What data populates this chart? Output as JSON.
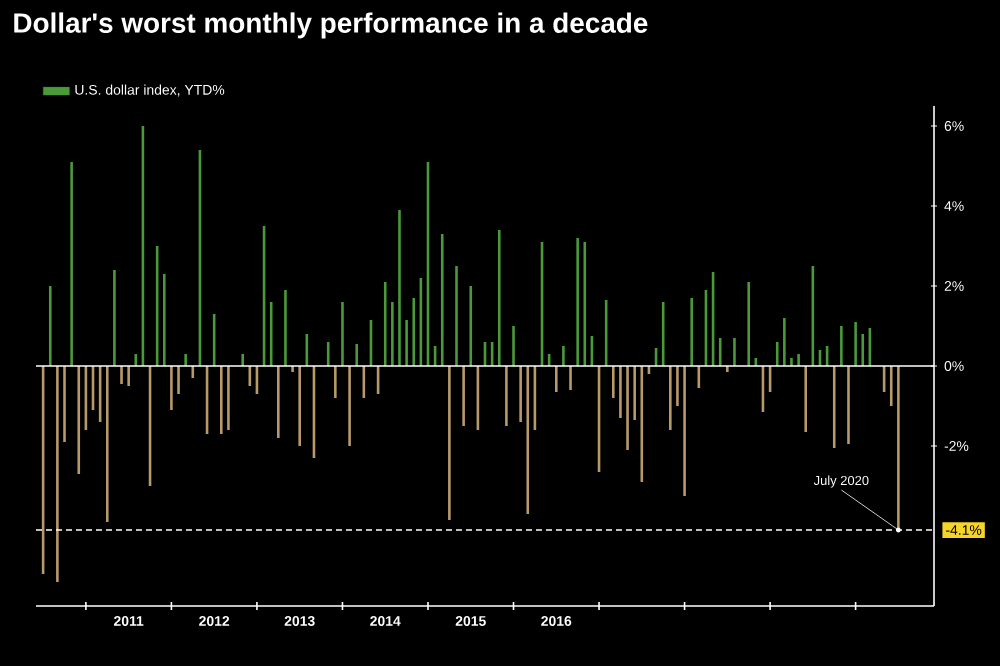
{
  "chart_data": {
    "type": "bar",
    "title": "Dollar's worst monthly performance in a decade",
    "x": [
      "2010-07",
      "2010-08",
      "2010-09",
      "2010-10",
      "2010-11",
      "2010-12",
      "2011-01",
      "2011-02",
      "2011-03",
      "2011-04",
      "2011-05",
      "2011-06",
      "2011-07",
      "2011-08",
      "2011-09",
      "2011-10",
      "2011-11",
      "2011-12",
      "2012-01",
      "2012-02",
      "2012-03",
      "2012-04",
      "2012-05",
      "2012-06",
      "2012-07",
      "2012-08",
      "2012-09",
      "2012-10",
      "2012-11",
      "2012-12",
      "2013-01",
      "2013-02",
      "2013-03",
      "2013-04",
      "2013-05",
      "2013-06",
      "2013-07",
      "2013-08",
      "2013-09",
      "2013-10",
      "2013-11",
      "2013-12",
      "2014-01",
      "2014-02",
      "2014-03",
      "2014-04",
      "2014-05",
      "2014-06",
      "2014-07",
      "2014-08",
      "2014-09",
      "2014-10",
      "2014-11",
      "2014-12",
      "2015-01",
      "2015-02",
      "2015-03",
      "2015-04",
      "2015-05",
      "2015-06",
      "2015-07",
      "2015-08",
      "2015-09",
      "2015-10",
      "2015-11",
      "2015-12",
      "2016-01",
      "2016-02",
      "2016-03",
      "2016-04",
      "2016-05",
      "2016-06",
      "2016-07",
      "2016-08",
      "2016-09",
      "2016-10",
      "2016-11",
      "2016-12",
      "2017-01",
      "2017-02",
      "2017-03",
      "2017-04",
      "2017-05",
      "2017-06",
      "2017-07",
      "2017-08",
      "2017-09",
      "2017-10",
      "2017-11",
      "2017-12",
      "2018-01",
      "2018-02",
      "2018-03",
      "2018-04",
      "2018-05",
      "2018-06",
      "2018-07",
      "2018-08",
      "2018-09",
      "2018-10",
      "2018-11",
      "2018-12",
      "2019-01",
      "2019-02",
      "2019-03",
      "2019-04",
      "2019-05",
      "2019-06",
      "2019-07",
      "2019-08",
      "2019-09",
      "2019-10",
      "2019-11",
      "2019-12",
      "2020-01",
      "2020-02",
      "2020-03",
      "2020-04",
      "2020-05",
      "2020-06",
      "2020-07"
    ],
    "series": [
      {
        "name": "U.S. dollar index, YTD%",
        "color": "#4a9a3a",
        "values": [
          -5.2,
          2.0,
          -5.4,
          -1.9,
          5.1,
          -2.7,
          -1.6,
          -1.1,
          -1.4,
          -3.9,
          2.4,
          -0.45,
          -0.5,
          0.3,
          6.0,
          -3.0,
          3.0,
          2.3,
          -1.1,
          -0.7,
          0.3,
          -0.3,
          5.4,
          -1.7,
          1.3,
          -1.7,
          -1.6,
          null,
          0.3,
          -0.5,
          -0.7,
          3.5,
          1.6,
          -1.8,
          1.9,
          -0.15,
          -2.0,
          0.8,
          -2.3,
          null,
          0.6,
          -0.8,
          1.6,
          -2.0,
          0.55,
          -0.8,
          1.15,
          -0.7,
          2.1,
          1.6,
          3.9,
          1.15,
          1.7,
          2.2,
          5.1,
          0.5,
          3.3,
          -3.85,
          2.5,
          -1.5,
          2.0,
          -1.6,
          0.6,
          0.6,
          3.4,
          -1.5,
          1.0,
          -1.4,
          -3.7,
          -1.6,
          3.1,
          0.3,
          -0.65,
          0.5,
          -0.6,
          3.2,
          3.1,
          0.75,
          -2.65,
          1.65,
          -0.8,
          -1.3,
          -2.1,
          -1.35,
          -2.9,
          -0.2,
          0.45,
          1.6,
          -1.6,
          -1.0,
          -3.25,
          1.7,
          -0.55,
          1.9,
          2.35,
          0.7,
          -0.15,
          0.7,
          null,
          2.1,
          0.2,
          -1.15,
          -0.65,
          0.6,
          1.2,
          0.2,
          0.3,
          -1.65,
          2.5,
          0.4,
          0.5,
          -2.05,
          1.0,
          -1.95,
          1.1,
          0.8,
          0.95,
          null,
          -0.65,
          -1.0,
          -4.1
        ],
        "colors": [
          "#b89a6a",
          "#4a9a3a",
          "#b89a6a",
          "#b89a6a",
          "#4a9a3a",
          "#b89a6a",
          "#b89a6a",
          "#b89a6a",
          "#b89a6a",
          "#b89a6a",
          "#4a9a3a",
          "#b89a6a",
          "#b89a6a",
          "#4a9a3a",
          "#4a9a3a",
          "#b89a6a",
          "#4a9a3a",
          "#4a9a3a",
          "#b89a6a",
          "#b89a6a",
          "#4a9a3a",
          "#b89a6a",
          "#4a9a3a",
          "#b89a6a",
          "#4a9a3a",
          "#b89a6a",
          "#b89a6a",
          "#b89a6a",
          "#4a9a3a",
          "#b89a6a",
          "#b89a6a",
          "#4a9a3a",
          "#4a9a3a",
          "#b89a6a",
          "#4a9a3a",
          "#b89a6a",
          "#b89a6a",
          "#4a9a3a",
          "#b89a6a",
          "#b89a6a",
          "#4a9a3a",
          "#b89a6a",
          "#4a9a3a",
          "#b89a6a",
          "#4a9a3a",
          "#b89a6a",
          "#4a9a3a",
          "#b89a6a",
          "#4a9a3a",
          "#4a9a3a",
          "#4a9a3a",
          "#4a9a3a",
          "#4a9a3a",
          "#4a9a3a",
          "#4a9a3a",
          "#4a9a3a",
          "#4a9a3a",
          "#b89a6a",
          "#4a9a3a",
          "#b89a6a",
          "#4a9a3a",
          "#b89a6a",
          "#4a9a3a",
          "#4a9a3a",
          "#4a9a3a",
          "#b89a6a",
          "#4a9a3a",
          "#b89a6a",
          "#b89a6a",
          "#b89a6a",
          "#4a9a3a",
          "#4a9a3a",
          "#b89a6a",
          "#4a9a3a",
          "#b89a6a",
          "#4a9a3a",
          "#4a9a3a",
          "#4a9a3a",
          "#b89a6a",
          "#4a9a3a",
          "#b89a6a",
          "#b89a6a",
          "#b89a6a",
          "#b89a6a",
          "#b89a6a",
          "#b89a6a",
          "#4a9a3a",
          "#4a9a3a",
          "#b89a6a",
          "#b89a6a",
          "#b89a6a",
          "#4a9a3a",
          "#b89a6a",
          "#4a9a3a",
          "#4a9a3a",
          "#4a9a3a",
          "#b89a6a",
          "#4a9a3a",
          "#b89a6a",
          "#4a9a3a",
          "#4a9a3a",
          "#b89a6a",
          "#b89a6a",
          "#4a9a3a",
          "#4a9a3a",
          "#4a9a3a",
          "#4a9a3a",
          "#b89a6a",
          "#4a9a3a",
          "#4a9a3a",
          "#4a9a3a",
          "#b89a6a",
          "#4a9a3a",
          "#b89a6a",
          "#4a9a3a",
          "#4a9a3a",
          "#4a9a3a",
          "#b89a6a",
          "#b89a6a",
          "#b89a6a",
          "#b89a6a"
        ]
      }
    ],
    "xlim": [
      "2010-06",
      "2020-12"
    ],
    "xticks": [
      {
        "value": "2011-01",
        "label": null
      },
      {
        "value": "2012-01",
        "label": null
      },
      {
        "value": "2013-01",
        "label": null
      },
      {
        "value": "2014-01",
        "label": null
      },
      {
        "value": "2015-01",
        "label": null
      },
      {
        "value": "2016-01",
        "label": null
      },
      {
        "value": "2017-01",
        "label": null
      },
      {
        "value": "2018-01",
        "label": null
      },
      {
        "value": "2019-01",
        "label": null
      },
      {
        "value": "2020-01",
        "label": null
      },
      {
        "value": "2011-07",
        "label": "2011"
      },
      {
        "value": "2012-07",
        "label": "2012"
      },
      {
        "value": "2013-07",
        "label": "2013"
      },
      {
        "value": "2014-07",
        "label": "2014"
      },
      {
        "value": "2015-07",
        "label": "2015"
      },
      {
        "value": "2016-07",
        "label": "2016"
      }
    ],
    "ylim": [
      -6.0,
      6.5
    ],
    "yticks": [
      {
        "value": -2,
        "label": "-2%"
      },
      {
        "value": 0,
        "label": "0%"
      },
      {
        "value": 2,
        "label": "2%"
      },
      {
        "value": 4,
        "label": "4%"
      },
      {
        "value": 6,
        "label": "6%"
      }
    ],
    "ref_lines": [
      {
        "axis": "y",
        "value": 0,
        "color": "#ffffff",
        "line_style": "solid"
      },
      {
        "axis": "y",
        "value": -4.1,
        "label": "-4.1%",
        "color": "#ffffff",
        "line_style": "dashed"
      }
    ],
    "annotations": [
      {
        "text": "July 2020",
        "x": "2020-07",
        "y": -4.1
      }
    ],
    "legend": "top left"
  }
}
